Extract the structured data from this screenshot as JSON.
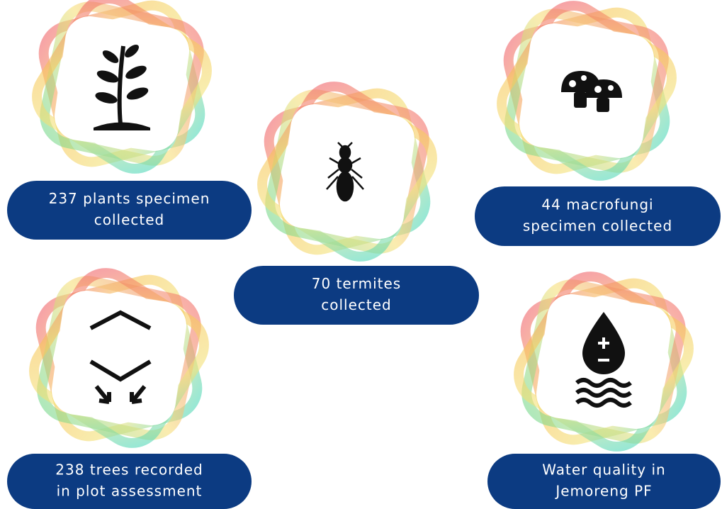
{
  "items": [
    {
      "lines": [
        "237 plants specimen",
        "collected"
      ]
    },
    {
      "lines": [
        "70 termites",
        "collected"
      ]
    },
    {
      "lines": [
        "44 macrofungi",
        "specimen collected"
      ]
    },
    {
      "lines": [
        "238 trees recorded",
        "in plot assessment"
      ]
    },
    {
      "lines": [
        "Water quality in",
        "Jemoreng PF"
      ]
    }
  ]
}
